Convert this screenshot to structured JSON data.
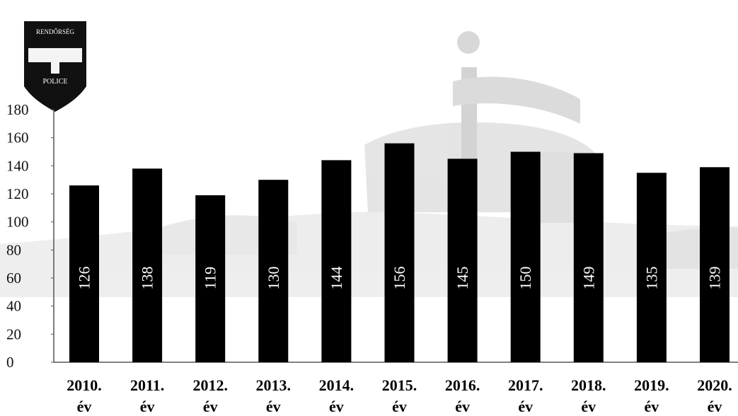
{
  "chart_data": {
    "type": "bar",
    "categories": [
      "2010.",
      "2011.",
      "2012.",
      "2013.",
      "2014.",
      "2015.",
      "2016.",
      "2017.",
      "2018.",
      "2019.",
      "2020."
    ],
    "category_suffix": "év",
    "values": [
      126,
      138,
      119,
      130,
      144,
      156,
      145,
      150,
      149,
      135,
      139
    ],
    "ylim": [
      0,
      180
    ],
    "yticks": [
      0,
      20,
      40,
      60,
      80,
      100,
      120,
      140,
      160,
      180
    ],
    "bar_color": "#000000",
    "value_label_color": "#ffffff",
    "grid": false,
    "legend": "none"
  },
  "badge": {
    "text_top": "RENDŐRSÉG",
    "text_bottom": "POLICE"
  }
}
